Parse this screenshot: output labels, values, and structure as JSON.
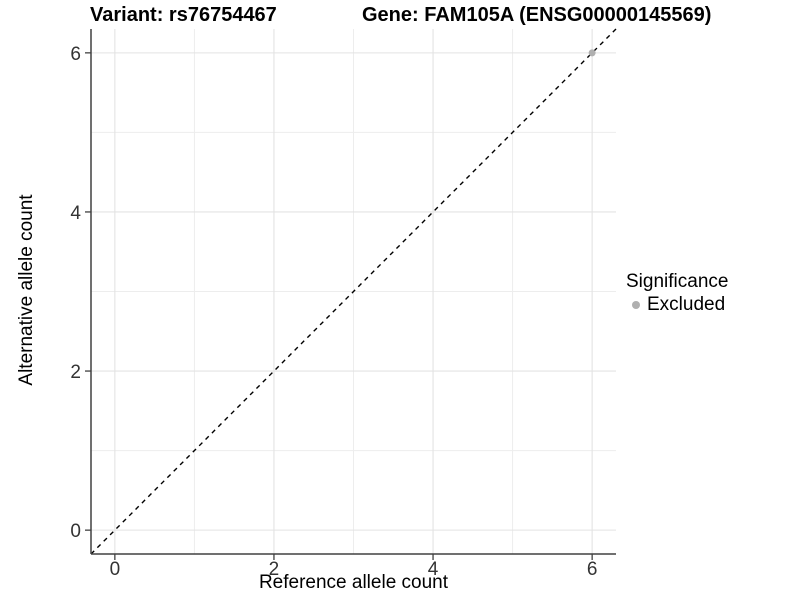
{
  "page": {
    "background": "#ffffff"
  },
  "chart_data": {
    "type": "scatter",
    "titles": {
      "left": "Variant: rs76754467",
      "right": "Gene: FAM105A (ENSG00000145569)"
    },
    "xlabel": "Reference allele count",
    "ylabel": "Alternative allele count",
    "xlim": [
      -0.3,
      6.3
    ],
    "ylim": [
      -0.3,
      6.3
    ],
    "x_ticks": [
      0,
      2,
      4,
      6
    ],
    "y_ticks": [
      0,
      2,
      4,
      6
    ],
    "minor_grid_x": [
      1,
      3,
      5
    ],
    "minor_grid_y": [
      1,
      3,
      5
    ],
    "grid": "on",
    "series": [
      {
        "name": "Excluded",
        "color": "#b0b0b0",
        "points": [
          {
            "x": 6,
            "y": 6
          }
        ]
      }
    ],
    "reference_line": {
      "slope": 1,
      "intercept": 0,
      "style": "dashed",
      "color": "#000000"
    },
    "legend": {
      "title": "Significance",
      "position": "right",
      "items": [
        {
          "label": "Excluded",
          "color": "#b0b0b0"
        }
      ]
    },
    "colors": {
      "major_grid": "#e3e3e3",
      "minor_grid": "#ededed",
      "axis_line": "#404040",
      "tick_label": "#333333",
      "title": "#000000"
    }
  }
}
